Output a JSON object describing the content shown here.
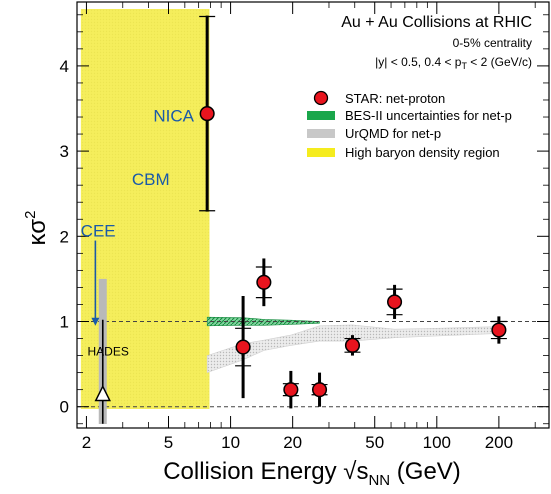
{
  "chart_data": {
    "type": "scatter",
    "title": "Au + Au Collisions at RHIC",
    "subtitle_line1": "0-5% centrality",
    "subtitle_line2_parts": [
      "|y| < 0.5, 0.4 < p",
      "T",
      " < 2 (GeV/c)"
    ],
    "xlabel_parts": [
      "Collision Energy ",
      "√s",
      "NN",
      " (GeV)"
    ],
    "ylabel_parts": [
      "κσ",
      "2"
    ],
    "x_scale": "log",
    "xlim": [
      1.8,
      350
    ],
    "ylim": [
      -0.25,
      4.75
    ],
    "x_ticks": [
      2,
      5,
      10,
      20,
      50,
      100,
      200
    ],
    "x_tick_labels": [
      "2",
      "5",
      "10",
      "20",
      "50",
      "100",
      "200"
    ],
    "y_ticks": [
      0,
      1,
      2,
      3,
      4
    ],
    "y_tick_labels": [
      "0",
      "1",
      "2",
      "3",
      "4"
    ],
    "reference_lines": [
      0,
      1
    ],
    "legend_position": "top-right",
    "legend": [
      {
        "label": "STAR: net-proton",
        "symbol": "circle",
        "color": "#e8141e"
      },
      {
        "label": "BES-II uncertainties for net-p",
        "symbol": "band",
        "color": "#1aa64b"
      },
      {
        "label": "UrQMD for net-p",
        "symbol": "band",
        "color": "#c8c8c8"
      },
      {
        "label": "High baryon density region",
        "symbol": "band",
        "color": "#f5ec1e"
      }
    ],
    "series": [
      {
        "name": "STAR: net-proton",
        "points": [
          {
            "x": 7.7,
            "y": 3.44,
            "err": 1.15,
            "sys": 1.14
          },
          {
            "x": 11.5,
            "y": 0.7,
            "err": 0.6,
            "sys": 0.22
          },
          {
            "x": 14.5,
            "y": 1.46,
            "err": 0.28,
            "sys": 0.18
          },
          {
            "x": 19.6,
            "y": 0.2,
            "err": 0.22,
            "sys": 0.07
          },
          {
            "x": 27,
            "y": 0.2,
            "err": 0.2,
            "sys": 0.06
          },
          {
            "x": 39,
            "y": 0.72,
            "err": 0.12,
            "sys": 0.08
          },
          {
            "x": 62.4,
            "y": 1.23,
            "err": 0.2,
            "sys": 0.15
          },
          {
            "x": 200,
            "y": 0.9,
            "err": 0.16,
            "sys": 0.1
          }
        ]
      }
    ],
    "bes_band": {
      "x": [
        7.7,
        11.5,
        14.5,
        19.6,
        27
      ],
      "y_center": [
        1.0,
        1.0,
        0.99,
        0.99,
        0.99
      ],
      "half_width": [
        0.05,
        0.045,
        0.035,
        0.025,
        0.01
      ]
    },
    "urqmd_band": {
      "x": [
        7.7,
        11.5,
        14.5,
        19.6,
        27,
        39,
        62.4,
        100,
        200
      ],
      "y_low": [
        0.4,
        0.55,
        0.66,
        0.72,
        0.77,
        0.77,
        0.81,
        0.83,
        0.86
      ],
      "y_high": [
        0.6,
        0.74,
        0.78,
        0.84,
        0.95,
        0.96,
        0.91,
        0.92,
        0.94
      ]
    },
    "high_baryon_region": {
      "x_range": [
        1.88,
        7.9
      ],
      "y_range": [
        -0.25,
        4.75
      ]
    },
    "annotations": [
      {
        "text": "NICA",
        "x": 5.3,
        "y": 3.35,
        "color": "#1a5aa8"
      },
      {
        "text": "CBM",
        "x": 4.1,
        "y": 2.6,
        "color": "#1a5aa8"
      },
      {
        "text": "CEE",
        "x": 2.28,
        "y": 2.0,
        "color": "#1a5aa8"
      },
      {
        "text": "HADES",
        "x": 2.55,
        "y": 0.6,
        "color": "#000000"
      }
    ],
    "hades": {
      "x": 2.4,
      "y": 0.12,
      "band_range": [
        -0.25,
        1.5
      ]
    },
    "cee_arrow": {
      "x": 2.21,
      "y_from": 1.95,
      "y_to": 0.95
    }
  }
}
